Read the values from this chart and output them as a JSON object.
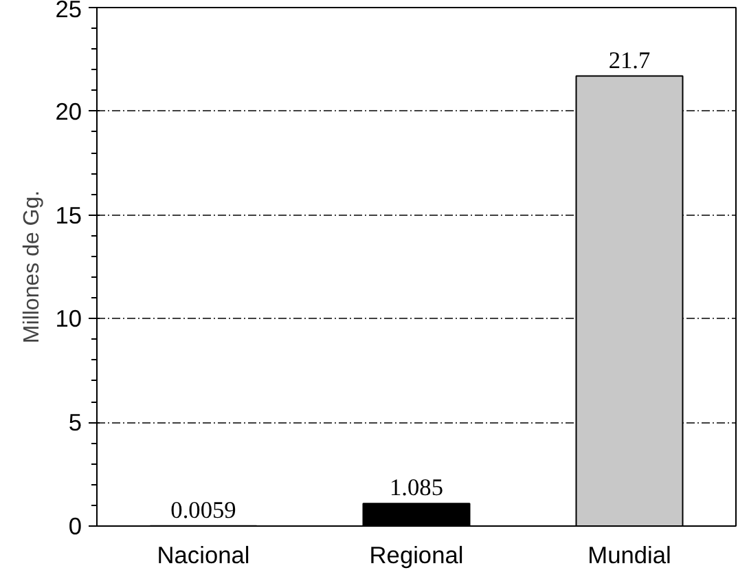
{
  "chart_data": {
    "type": "bar",
    "ylabel": "Millones de Gg.",
    "categories": [
      "Nacional",
      "Regional",
      "Mundial"
    ],
    "values": [
      0.0059,
      1.085,
      21.7
    ],
    "colors": [
      "#000000",
      "#000000",
      "#c8c8c8"
    ],
    "ylim": [
      0,
      25
    ],
    "yticks": [
      0,
      5,
      10,
      15,
      20,
      25
    ],
    "grid": "y",
    "data_labels": true
  }
}
